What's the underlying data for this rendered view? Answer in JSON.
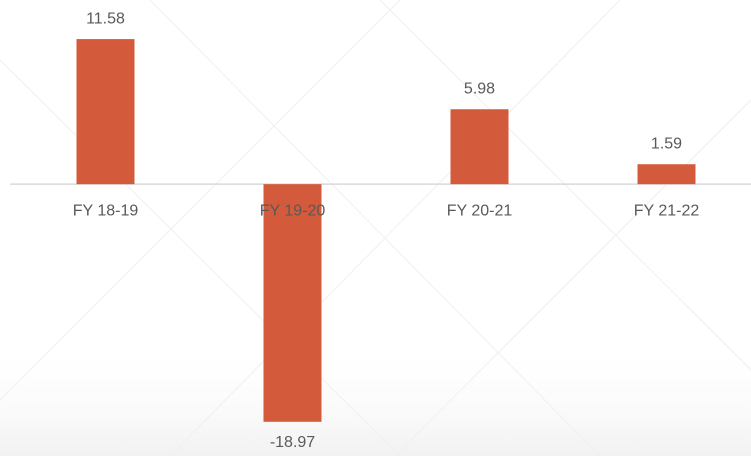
{
  "chart_data": {
    "type": "bar",
    "categories": [
      "FY 18-19",
      "FY 19-20",
      "FY 20-21",
      "FY 21-22"
    ],
    "values": [
      11.58,
      -18.97,
      5.98,
      1.59
    ],
    "color": "#d35a3b",
    "ylim": [
      -21.7,
      14.7
    ]
  }
}
